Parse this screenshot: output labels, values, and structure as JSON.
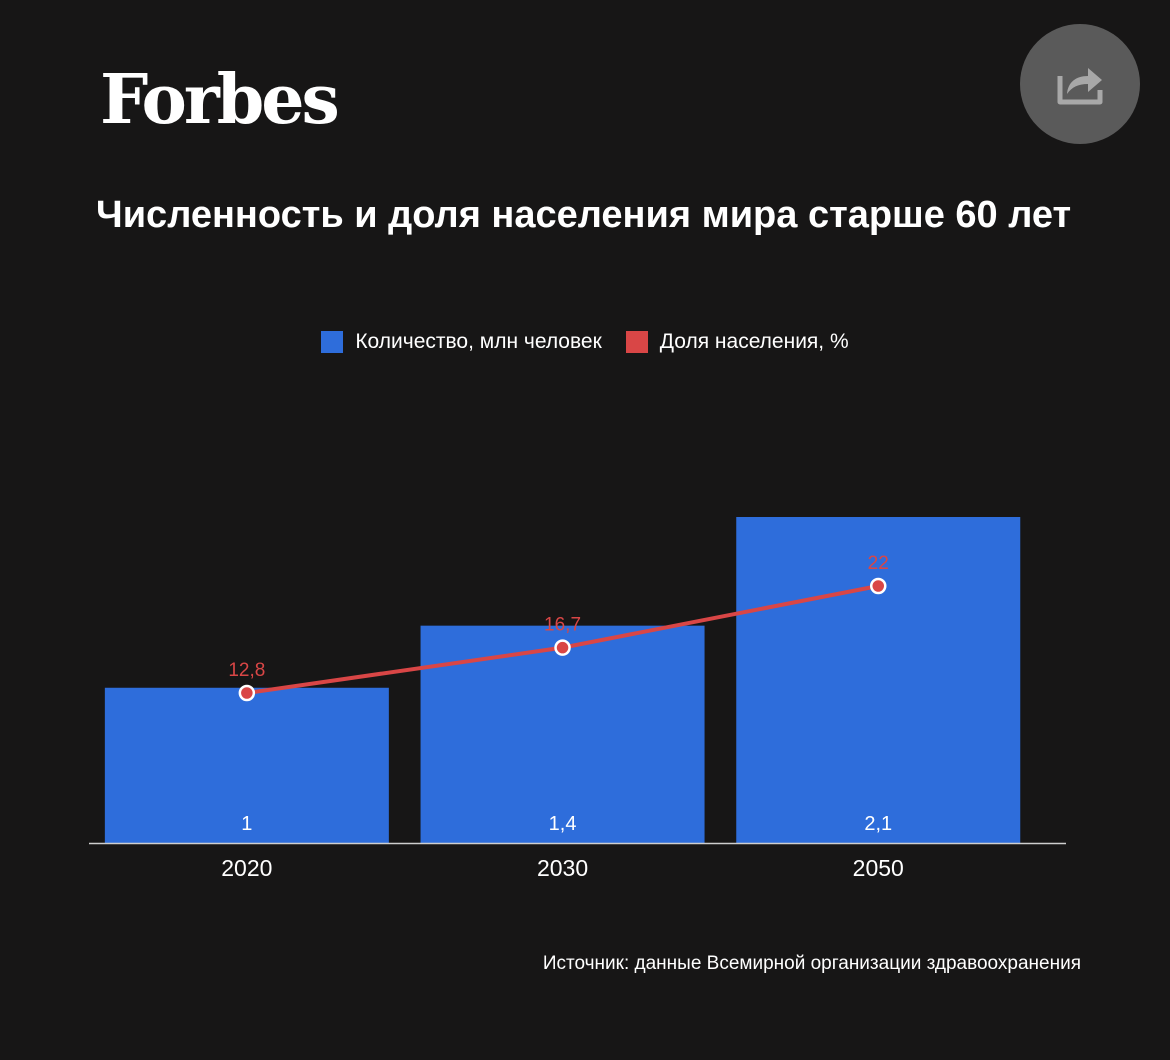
{
  "header": {
    "logo": "Forbes",
    "share_icon": "share-arrow-icon"
  },
  "chart_data": {
    "type": "bar",
    "title": "Численность и доля населения мира старше 60 лет",
    "categories": [
      "2020",
      "2030",
      "2050"
    ],
    "legend_position": "top",
    "grid": false,
    "series": [
      {
        "name": "Количество, млн человек",
        "type": "bar",
        "color": "#2e6ddb",
        "values": [
          1,
          1.4,
          2.1
        ],
        "labels": [
          "1",
          "1,4",
          "2,1"
        ]
      },
      {
        "name": "Доля населения, %",
        "type": "line",
        "color": "#d94646",
        "values": [
          12.8,
          16.7,
          22
        ],
        "labels": [
          "12,8",
          "16,7",
          "22"
        ]
      }
    ]
  },
  "footer": {
    "source": "Источник: данные Всемирной организации здравоохранения"
  }
}
